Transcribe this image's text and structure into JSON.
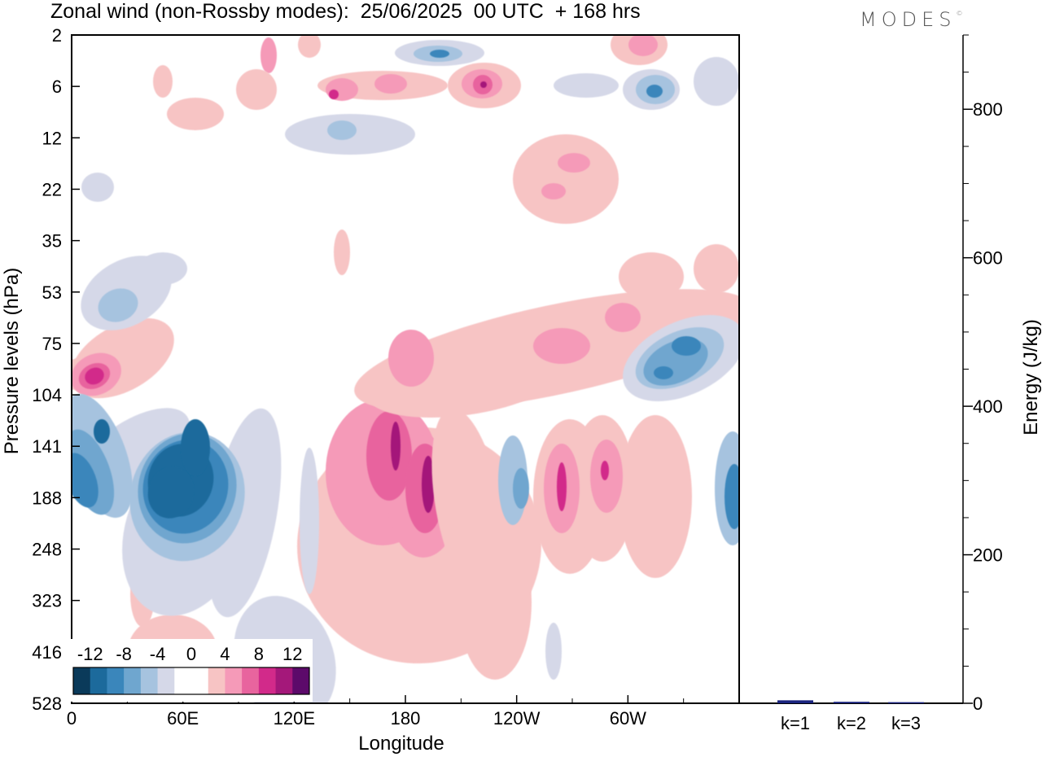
{
  "title": "Zonal wind (non-Rossby modes):  25/06/2025  00 UTC  + 168 hrs",
  "brand": "MODES",
  "brand_mark": "©",
  "chart_data": [
    {
      "type": "heatmap",
      "title": "Zonal wind (non-Rossby modes):  25/06/2025  00 UTC  + 168 hrs",
      "xlabel": "Longitude",
      "ylabel": "Pressure levels (hPa)",
      "x_ticks": [
        "0",
        "60E",
        "120E",
        "180",
        "120W",
        "60W"
      ],
      "x_tick_degrees": [
        0,
        60,
        120,
        180,
        240,
        300
      ],
      "xlim": [
        0,
        360
      ],
      "y_ticks": [
        "2",
        "6",
        "12",
        "22",
        "35",
        "53",
        "75",
        "104",
        "141",
        "188",
        "248",
        "323",
        "416",
        "528"
      ],
      "colorbar_labels": [
        "-12",
        "-8",
        "-4",
        "0",
        "4",
        "8",
        "12"
      ],
      "colorbar_colors": [
        "#0a3a5a",
        "#1c6a9c",
        "#3a86bb",
        "#6fa6cf",
        "#a6c3df",
        "#d5d8e8",
        "#ffffff",
        "#ffffff",
        "#f7c4c4",
        "#f59ab8",
        "#e8649e",
        "#d22a8a",
        "#a4187a",
        "#5c0a6a"
      ],
      "features": [
        {
          "sign": "positive",
          "lon": 190,
          "level": "188",
          "value": 10
        },
        {
          "sign": "positive",
          "lon": 175,
          "level": "141",
          "value": 9
        },
        {
          "sign": "positive",
          "lon": 13,
          "level": "104",
          "value": 10
        },
        {
          "sign": "negative",
          "lon": 65,
          "level": "188",
          "value": -12
        },
        {
          "sign": "negative",
          "lon": 10,
          "level": "188",
          "value": -9
        },
        {
          "sign": "negative",
          "lon": 318,
          "level": "75",
          "value": -7
        },
        {
          "sign": "positive",
          "lon": 220,
          "level": "6",
          "value": 10
        },
        {
          "sign": "positive",
          "lon": 265,
          "level": "141",
          "value": 7
        },
        {
          "sign": "negative",
          "lon": 355,
          "level": "188",
          "value": -8
        }
      ]
    },
    {
      "type": "bar",
      "title": "",
      "xlabel": "",
      "ylabel": "Energy (J/kg)",
      "categories": [
        "k=1",
        "k=2",
        "k=3"
      ],
      "values": [
        4,
        2,
        1.5
      ],
      "ylim": [
        0,
        900
      ],
      "y_ticks": [
        "0",
        "200",
        "400",
        "600",
        "800"
      ],
      "bar_color": "#1a237e"
    }
  ]
}
